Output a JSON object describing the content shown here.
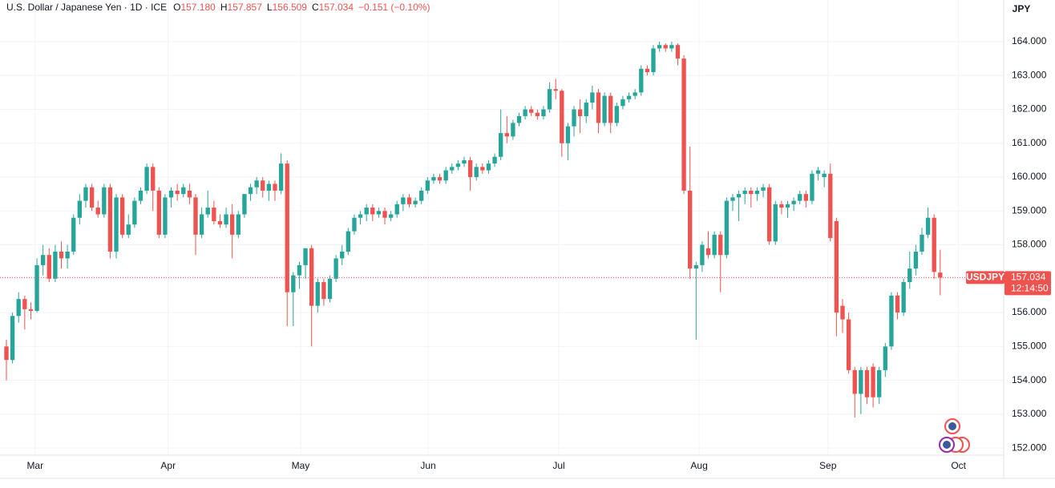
{
  "header": {
    "title": "U.S. Dollar / Japanese Yen · 1D · ICE",
    "ohlc": [
      {
        "label": "O",
        "value": "157.180"
      },
      {
        "label": "H",
        "value": "157.857"
      },
      {
        "label": "L",
        "value": "156.509"
      },
      {
        "label": "C",
        "value": "157.034"
      }
    ],
    "change": "−0.151 (−0.10%)"
  },
  "chart_data": {
    "type": "candlestick",
    "up_color": "#26a69a",
    "down_color": "#ef5350",
    "y_unit": "JPY",
    "grid": true,
    "xlim": [
      -1.05,
      163.4
    ],
    "ylim": [
      151.79,
      165.23
    ],
    "xticks": [
      {
        "value": 4.7,
        "label": "Mar"
      },
      {
        "value": 26.5,
        "label": "Apr"
      },
      {
        "value": 48.2,
        "label": "May"
      },
      {
        "value": 69.1,
        "label": "Jun"
      },
      {
        "value": 90.5,
        "label": "Jul"
      },
      {
        "value": 113.5,
        "label": "Aug"
      },
      {
        "value": 134.6,
        "label": "Sep"
      },
      {
        "value": 156.0,
        "label": "Oct"
      }
    ],
    "yticks": [
      {
        "value": 152,
        "label": "152.000"
      },
      {
        "value": 153,
        "label": "153.000"
      },
      {
        "value": 154,
        "label": "154.000"
      },
      {
        "value": 155,
        "label": "155.000"
      },
      {
        "value": 156,
        "label": "156.000"
      },
      {
        "value": 157,
        "label": "157.000"
      },
      {
        "value": 158,
        "label": "158.000"
      },
      {
        "value": 159,
        "label": "159.000"
      },
      {
        "value": 160,
        "label": "160.000"
      },
      {
        "value": 161,
        "label": "161.000"
      },
      {
        "value": 162,
        "label": "162.000"
      },
      {
        "value": 163,
        "label": "163.000"
      },
      {
        "value": 164,
        "label": "164.000"
      }
    ],
    "last_price": {
      "symbol": "USDJPY",
      "value": {
        "value": 157.034,
        "label": "157.034"
      },
      "countdown": "12:14:50"
    },
    "candles": [
      {
        "open": 155.0,
        "high": 155.2,
        "low": 154.0,
        "close": 154.6
      },
      {
        "open": 154.6,
        "high": 156.0,
        "low": 154.5,
        "close": 155.9
      },
      {
        "open": 155.9,
        "high": 156.6,
        "low": 155.7,
        "close": 156.4
      },
      {
        "open": 156.4,
        "high": 156.5,
        "low": 155.5,
        "close": 156.1
      },
      {
        "open": 156.1,
        "high": 156.3,
        "low": 155.8,
        "close": 156.05
      },
      {
        "open": 156.05,
        "high": 157.6,
        "low": 156.0,
        "close": 157.4
      },
      {
        "open": 157.4,
        "high": 158.0,
        "low": 157.1,
        "close": 157.7
      },
      {
        "open": 157.7,
        "high": 157.9,
        "low": 156.9,
        "close": 157.0
      },
      {
        "open": 157.0,
        "high": 158.0,
        "low": 156.9,
        "close": 157.8
      },
      {
        "open": 157.8,
        "high": 158.1,
        "low": 157.3,
        "close": 157.6
      },
      {
        "open": 157.6,
        "high": 158.0,
        "low": 157.3,
        "close": 157.8
      },
      {
        "open": 157.8,
        "high": 158.9,
        "low": 157.7,
        "close": 158.8
      },
      {
        "open": 158.8,
        "high": 159.5,
        "low": 158.6,
        "close": 159.3
      },
      {
        "open": 159.3,
        "high": 159.8,
        "low": 159.1,
        "close": 159.7
      },
      {
        "open": 159.7,
        "high": 159.8,
        "low": 159.0,
        "close": 159.1
      },
      {
        "open": 159.1,
        "high": 159.3,
        "low": 158.8,
        "close": 158.9
      },
      {
        "open": 158.9,
        "high": 159.8,
        "low": 158.8,
        "close": 159.7
      },
      {
        "open": 159.7,
        "high": 159.8,
        "low": 157.6,
        "close": 157.8
      },
      {
        "open": 157.8,
        "high": 159.5,
        "low": 157.6,
        "close": 159.4
      },
      {
        "open": 159.4,
        "high": 159.5,
        "low": 158.2,
        "close": 158.3
      },
      {
        "open": 158.3,
        "high": 158.9,
        "low": 158.2,
        "close": 158.6
      },
      {
        "open": 158.6,
        "high": 159.4,
        "low": 158.5,
        "close": 159.3
      },
      {
        "open": 159.3,
        "high": 159.7,
        "low": 159.2,
        "close": 159.6
      },
      {
        "open": 159.6,
        "high": 160.4,
        "low": 159.5,
        "close": 160.3
      },
      {
        "open": 160.3,
        "high": 160.4,
        "low": 159.0,
        "close": 159.6
      },
      {
        "open": 159.6,
        "high": 159.7,
        "low": 158.2,
        "close": 158.3
      },
      {
        "open": 158.3,
        "high": 159.5,
        "low": 158.2,
        "close": 159.4
      },
      {
        "open": 159.4,
        "high": 159.7,
        "low": 159.1,
        "close": 159.6
      },
      {
        "open": 159.6,
        "high": 159.8,
        "low": 159.3,
        "close": 159.5
      },
      {
        "open": 159.5,
        "high": 159.8,
        "low": 159.4,
        "close": 159.7
      },
      {
        "open": 159.6,
        "high": 159.8,
        "low": 159.2,
        "close": 159.4
      },
      {
        "open": 159.4,
        "high": 159.5,
        "low": 157.7,
        "close": 158.3
      },
      {
        "open": 158.3,
        "high": 159.1,
        "low": 158.2,
        "close": 158.9
      },
      {
        "open": 158.9,
        "high": 159.6,
        "low": 158.8,
        "close": 159.1
      },
      {
        "open": 159.1,
        "high": 159.3,
        "low": 158.6,
        "close": 158.7
      },
      {
        "open": 158.7,
        "high": 158.9,
        "low": 158.5,
        "close": 158.6
      },
      {
        "open": 158.6,
        "high": 159.1,
        "low": 158.5,
        "close": 158.9
      },
      {
        "open": 158.9,
        "high": 159.2,
        "low": 157.6,
        "close": 158.3
      },
      {
        "open": 158.3,
        "high": 159.0,
        "low": 158.2,
        "close": 158.9
      },
      {
        "open": 158.9,
        "high": 159.5,
        "low": 158.8,
        "close": 159.5
      },
      {
        "open": 159.5,
        "high": 159.8,
        "low": 159.3,
        "close": 159.7
      },
      {
        "open": 159.7,
        "high": 160.0,
        "low": 159.5,
        "close": 159.9
      },
      {
        "open": 159.9,
        "high": 160.0,
        "low": 159.4,
        "close": 159.6
      },
      {
        "open": 159.6,
        "high": 159.9,
        "low": 159.3,
        "close": 159.8
      },
      {
        "open": 159.8,
        "high": 159.9,
        "low": 159.3,
        "close": 159.6
      },
      {
        "open": 159.6,
        "high": 160.7,
        "low": 159.5,
        "close": 160.4
      },
      {
        "open": 160.4,
        "high": 160.5,
        "low": 155.6,
        "close": 156.6
      },
      {
        "open": 156.6,
        "high": 157.2,
        "low": 155.6,
        "close": 157.1
      },
      {
        "open": 157.1,
        "high": 157.5,
        "low": 156.7,
        "close": 157.4
      },
      {
        "open": 157.4,
        "high": 157.9,
        "low": 157.0,
        "close": 157.9
      },
      {
        "open": 157.9,
        "high": 158.0,
        "low": 155.0,
        "close": 156.2
      },
      {
        "open": 156.2,
        "high": 157.0,
        "low": 156.0,
        "close": 156.9
      },
      {
        "open": 156.9,
        "high": 157.0,
        "low": 156.2,
        "close": 156.4
      },
      {
        "open": 156.4,
        "high": 157.1,
        "low": 156.3,
        "close": 157.0
      },
      {
        "open": 157.0,
        "high": 157.7,
        "low": 156.9,
        "close": 157.6
      },
      {
        "open": 157.6,
        "high": 158.0,
        "low": 157.4,
        "close": 157.8
      },
      {
        "open": 157.8,
        "high": 158.5,
        "low": 157.7,
        "close": 158.4
      },
      {
        "open": 158.4,
        "high": 158.9,
        "low": 158.3,
        "close": 158.8
      },
      {
        "open": 158.8,
        "high": 159.0,
        "low": 158.6,
        "close": 158.9
      },
      {
        "open": 158.9,
        "high": 159.2,
        "low": 158.7,
        "close": 159.1
      },
      {
        "open": 159.1,
        "high": 159.2,
        "low": 158.7,
        "close": 158.9
      },
      {
        "open": 158.9,
        "high": 159.1,
        "low": 158.8,
        "close": 159.0
      },
      {
        "open": 159.0,
        "high": 159.1,
        "low": 158.6,
        "close": 158.8
      },
      {
        "open": 158.8,
        "high": 159.0,
        "low": 158.7,
        "close": 158.9
      },
      {
        "open": 158.9,
        "high": 159.3,
        "low": 158.8,
        "close": 159.2
      },
      {
        "open": 159.2,
        "high": 159.5,
        "low": 159.0,
        "close": 159.4
      },
      {
        "open": 159.4,
        "high": 159.5,
        "low": 159.1,
        "close": 159.2
      },
      {
        "open": 159.2,
        "high": 159.4,
        "low": 159.1,
        "close": 159.3
      },
      {
        "open": 159.3,
        "high": 159.7,
        "low": 159.2,
        "close": 159.6
      },
      {
        "open": 159.6,
        "high": 160.0,
        "low": 159.5,
        "close": 159.9
      },
      {
        "open": 159.9,
        "high": 160.1,
        "low": 159.8,
        "close": 160.0
      },
      {
        "open": 160.0,
        "high": 160.1,
        "low": 159.8,
        "close": 159.9
      },
      {
        "open": 159.9,
        "high": 160.3,
        "low": 159.8,
        "close": 160.2
      },
      {
        "open": 160.2,
        "high": 160.4,
        "low": 160.1,
        "close": 160.3
      },
      {
        "open": 160.3,
        "high": 160.5,
        "low": 160.2,
        "close": 160.4
      },
      {
        "open": 160.4,
        "high": 160.6,
        "low": 160.3,
        "close": 160.5
      },
      {
        "open": 160.5,
        "high": 160.6,
        "low": 159.6,
        "close": 160.0
      },
      {
        "open": 160.0,
        "high": 160.4,
        "low": 159.9,
        "close": 160.3
      },
      {
        "open": 160.3,
        "high": 160.4,
        "low": 160.1,
        "close": 160.2
      },
      {
        "open": 160.2,
        "high": 160.5,
        "low": 160.1,
        "close": 160.4
      },
      {
        "open": 160.4,
        "high": 160.7,
        "low": 160.3,
        "close": 160.6
      },
      {
        "open": 160.6,
        "high": 162.0,
        "low": 160.5,
        "close": 161.3
      },
      {
        "open": 161.3,
        "high": 161.8,
        "low": 161.0,
        "close": 161.2
      },
      {
        "open": 161.2,
        "high": 161.7,
        "low": 161.1,
        "close": 161.6
      },
      {
        "open": 161.6,
        "high": 161.9,
        "low": 161.5,
        "close": 161.8
      },
      {
        "open": 161.8,
        "high": 162.1,
        "low": 161.7,
        "close": 162.0
      },
      {
        "open": 162.0,
        "high": 162.1,
        "low": 161.8,
        "close": 161.9
      },
      {
        "open": 161.9,
        "high": 162.0,
        "low": 161.7,
        "close": 161.8
      },
      {
        "open": 161.8,
        "high": 162.1,
        "low": 161.7,
        "close": 162.0
      },
      {
        "open": 162.0,
        "high": 162.8,
        "low": 161.9,
        "close": 162.6
      },
      {
        "open": 162.6,
        "high": 162.9,
        "low": 162.3,
        "close": 162.55
      },
      {
        "open": 162.55,
        "high": 162.6,
        "low": 160.6,
        "close": 161.0
      },
      {
        "open": 161.0,
        "high": 161.6,
        "low": 160.5,
        "close": 161.5
      },
      {
        "open": 161.5,
        "high": 162.1,
        "low": 161.2,
        "close": 162.0
      },
      {
        "open": 162.0,
        "high": 162.3,
        "low": 161.3,
        "close": 161.8
      },
      {
        "open": 161.8,
        "high": 162.3,
        "low": 161.6,
        "close": 162.2
      },
      {
        "open": 162.2,
        "high": 162.7,
        "low": 162.0,
        "close": 162.5
      },
      {
        "open": 162.5,
        "high": 162.6,
        "low": 161.3,
        "close": 161.6
      },
      {
        "open": 161.6,
        "high": 162.5,
        "low": 161.5,
        "close": 162.4
      },
      {
        "open": 162.4,
        "high": 162.5,
        "low": 161.3,
        "close": 161.6
      },
      {
        "open": 161.6,
        "high": 162.2,
        "low": 161.5,
        "close": 162.1
      },
      {
        "open": 162.1,
        "high": 162.4,
        "low": 162.0,
        "close": 162.3
      },
      {
        "open": 162.3,
        "high": 162.5,
        "low": 162.2,
        "close": 162.4
      },
      {
        "open": 162.4,
        "high": 162.6,
        "low": 162.3,
        "close": 162.5
      },
      {
        "open": 162.5,
        "high": 163.3,
        "low": 162.4,
        "close": 163.2
      },
      {
        "open": 163.2,
        "high": 163.3,
        "low": 163.0,
        "close": 163.1
      },
      {
        "open": 163.1,
        "high": 163.9,
        "low": 163.0,
        "close": 163.8
      },
      {
        "open": 163.8,
        "high": 164.0,
        "low": 163.7,
        "close": 163.9
      },
      {
        "open": 163.9,
        "high": 163.95,
        "low": 163.7,
        "close": 163.8
      },
      {
        "open": 163.8,
        "high": 164.0,
        "low": 163.7,
        "close": 163.9
      },
      {
        "open": 163.9,
        "high": 163.95,
        "low": 163.3,
        "close": 163.5
      },
      {
        "open": 163.5,
        "high": 163.6,
        "low": 159.5,
        "close": 159.6
      },
      {
        "open": 159.6,
        "high": 160.9,
        "low": 157.0,
        "close": 157.3
      },
      {
        "open": 157.3,
        "high": 157.5,
        "low": 155.2,
        "close": 157.4
      },
      {
        "open": 157.4,
        "high": 158.1,
        "low": 157.2,
        "close": 158.0
      },
      {
        "open": 157.9,
        "high": 158.4,
        "low": 157.6,
        "close": 157.7
      },
      {
        "open": 157.7,
        "high": 158.4,
        "low": 157.6,
        "close": 158.3
      },
      {
        "open": 158.3,
        "high": 158.4,
        "low": 156.6,
        "close": 157.7
      },
      {
        "open": 157.7,
        "high": 159.4,
        "low": 157.6,
        "close": 159.3
      },
      {
        "open": 159.3,
        "high": 159.5,
        "low": 159.0,
        "close": 159.4
      },
      {
        "open": 159.4,
        "high": 159.6,
        "low": 158.7,
        "close": 159.5
      },
      {
        "open": 159.5,
        "high": 159.7,
        "low": 159.2,
        "close": 159.6
      },
      {
        "open": 159.6,
        "high": 159.7,
        "low": 159.1,
        "close": 159.5
      },
      {
        "open": 159.5,
        "high": 159.7,
        "low": 159.3,
        "close": 159.6
      },
      {
        "open": 159.6,
        "high": 159.8,
        "low": 159.4,
        "close": 159.7
      },
      {
        "open": 159.7,
        "high": 159.8,
        "low": 158.0,
        "close": 158.1
      },
      {
        "open": 158.1,
        "high": 159.3,
        "low": 158.0,
        "close": 159.2
      },
      {
        "open": 159.2,
        "high": 159.3,
        "low": 158.9,
        "close": 159.1
      },
      {
        "open": 159.1,
        "high": 159.3,
        "low": 158.8,
        "close": 159.2
      },
      {
        "open": 159.2,
        "high": 159.4,
        "low": 159.0,
        "close": 159.3
      },
      {
        "open": 159.3,
        "high": 159.6,
        "low": 159.2,
        "close": 159.5
      },
      {
        "open": 159.5,
        "high": 159.6,
        "low": 159.1,
        "close": 159.3
      },
      {
        "open": 159.3,
        "high": 160.2,
        "low": 159.2,
        "close": 160.1
      },
      {
        "open": 160.1,
        "high": 160.3,
        "low": 159.9,
        "close": 160.2
      },
      {
        "open": 160.0,
        "high": 160.2,
        "low": 159.7,
        "close": 160.1
      },
      {
        "open": 160.1,
        "high": 160.4,
        "low": 158.1,
        "close": 158.2
      },
      {
        "open": 158.7,
        "high": 158.8,
        "low": 155.3,
        "close": 156.0
      },
      {
        "open": 156.2,
        "high": 156.4,
        "low": 155.4,
        "close": 155.8
      },
      {
        "open": 155.8,
        "high": 156.0,
        "low": 154.2,
        "close": 154.3
      },
      {
        "open": 154.3,
        "high": 154.4,
        "low": 152.9,
        "close": 153.6
      },
      {
        "open": 153.6,
        "high": 154.4,
        "low": 153.0,
        "close": 154.3
      },
      {
        "open": 154.3,
        "high": 154.4,
        "low": 153.3,
        "close": 153.5
      },
      {
        "open": 154.4,
        "high": 154.5,
        "low": 153.2,
        "close": 153.5
      },
      {
        "open": 153.5,
        "high": 154.4,
        "low": 153.3,
        "close": 154.3
      },
      {
        "open": 154.3,
        "high": 155.1,
        "low": 154.1,
        "close": 155.0
      },
      {
        "open": 155.0,
        "high": 156.6,
        "low": 154.9,
        "close": 156.5
      },
      {
        "open": 156.5,
        "high": 156.6,
        "low": 155.8,
        "close": 156.0
      },
      {
        "open": 156.0,
        "high": 157.0,
        "low": 155.9,
        "close": 156.9
      },
      {
        "open": 156.9,
        "high": 157.8,
        "low": 156.7,
        "close": 157.3
      },
      {
        "open": 157.3,
        "high": 158.0,
        "low": 157.1,
        "close": 157.8
      },
      {
        "open": 157.8,
        "high": 158.5,
        "low": 157.7,
        "close": 158.3
      },
      {
        "open": 158.3,
        "high": 159.1,
        "low": 158.2,
        "close": 158.8
      },
      {
        "open": 158.8,
        "high": 158.9,
        "low": 157.0,
        "close": 157.2
      },
      {
        "open": 157.18,
        "high": 157.857,
        "low": 156.509,
        "close": 157.034
      }
    ]
  }
}
